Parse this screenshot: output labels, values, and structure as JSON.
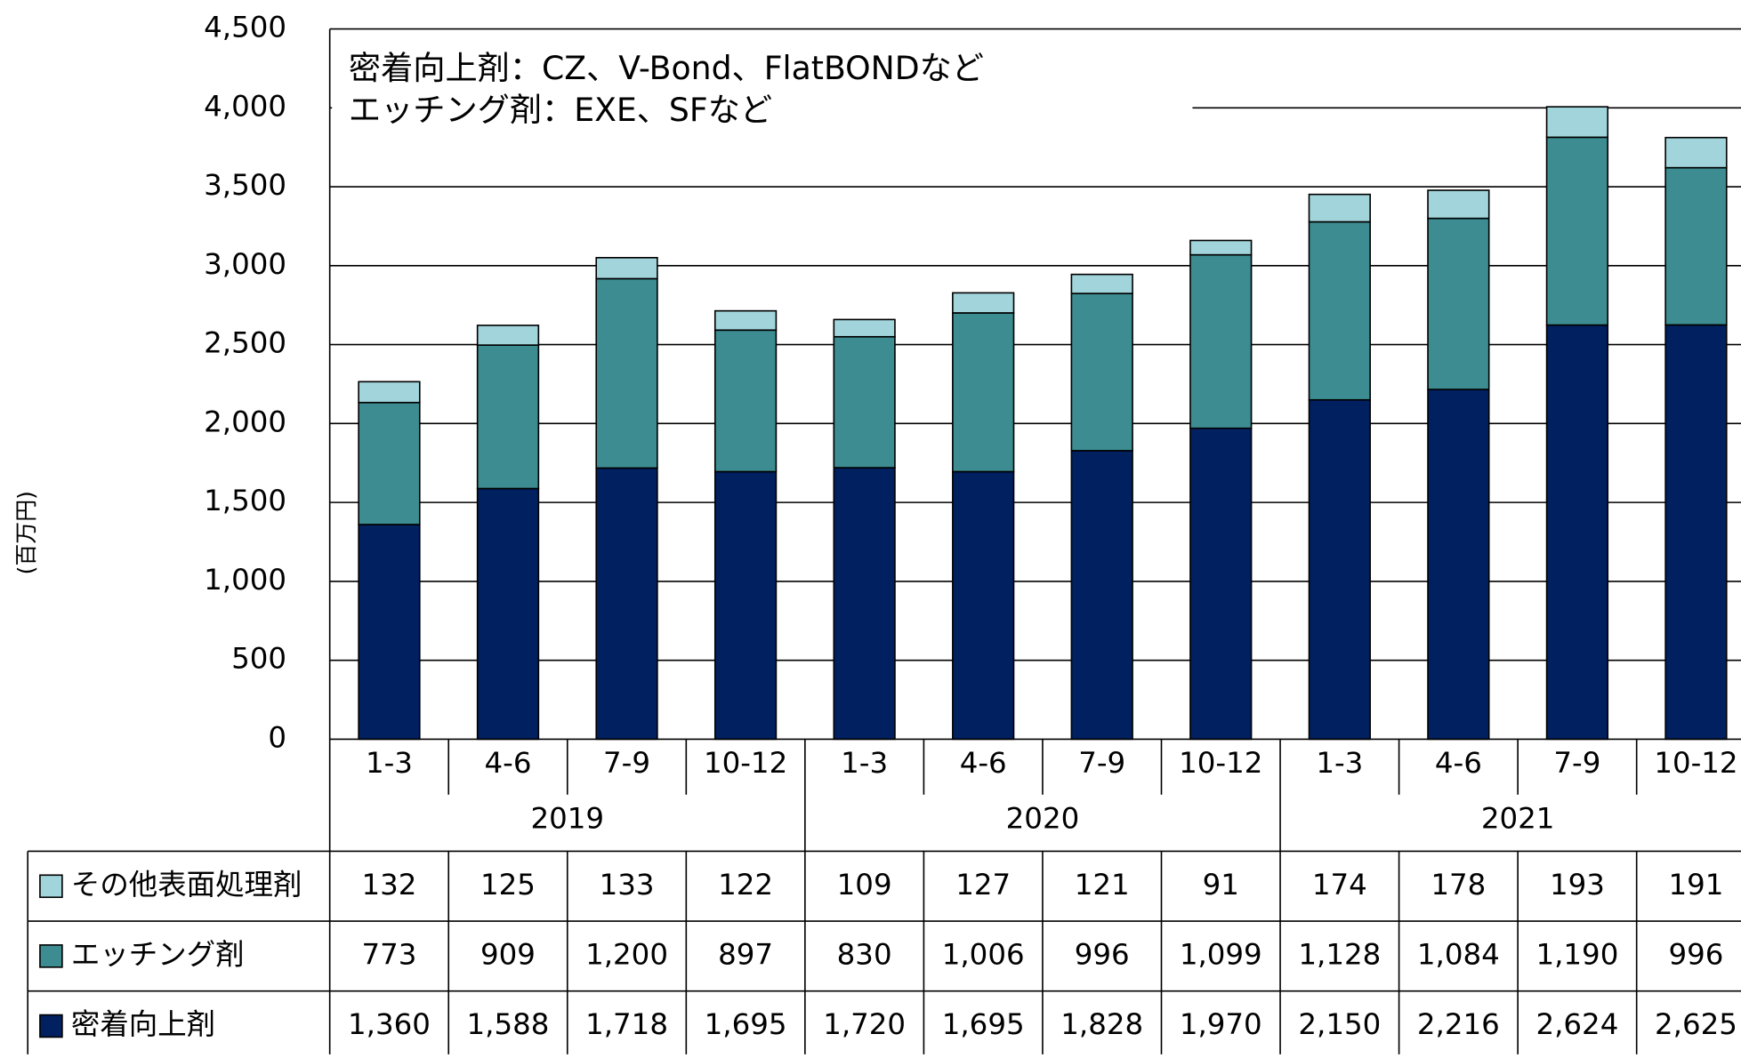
{
  "chart_data": {
    "type": "bar",
    "stacked": true,
    "y_label": "(百万円)",
    "annotations": [
      "密着向上剤：CZ、V-Bond、FlatBONDなど",
      "エッチング剤：EXE、SFなど"
    ],
    "categories": [
      "1-3",
      "4-6",
      "7-9",
      "10-12",
      "1-3",
      "4-6",
      "7-9",
      "10-12",
      "1-3",
      "4-6",
      "7-9",
      "10-12"
    ],
    "years": [
      "2019",
      "2020",
      "2021"
    ],
    "ylim": [
      0,
      4500
    ],
    "yticks": [
      0,
      500,
      {
        "value": 1000,
        "label": "1,000"
      },
      {
        "value": 1500,
        "label": "1,500"
      },
      {
        "value": 2000,
        "label": "2,000"
      },
      {
        "value": 2500,
        "label": "2,500"
      },
      {
        "value": 3000,
        "label": "3,000"
      },
      {
        "value": 3500,
        "label": "3,500"
      },
      {
        "value": 4000,
        "label": "4,000"
      },
      {
        "value": 4500,
        "label": "4,500"
      }
    ],
    "grid": true,
    "series": [
      {
        "name": "密着向上剤",
        "color": "#002060",
        "values": [
          1360,
          1588,
          1718,
          1695,
          1720,
          1695,
          1828,
          1970,
          2150,
          2216,
          2624,
          2625
        ],
        "value_labels": [
          "1,360",
          "1,588",
          "1,718",
          "1,695",
          "1,720",
          "1,695",
          "1,828",
          "1,970",
          "2,150",
          "2,216",
          "2,624",
          "2,625"
        ]
      },
      {
        "name": "エッチング剤",
        "color": "#3c8c91",
        "values": [
          773,
          909,
          1200,
          897,
          830,
          1006,
          996,
          1099,
          1128,
          1084,
          1190,
          996
        ],
        "value_labels": [
          "773",
          "909",
          "1,200",
          "897",
          "830",
          "1,006",
          "996",
          "1,099",
          "1,128",
          "1,084",
          "1,190",
          "996"
        ]
      },
      {
        "name": "その他表面処理剤",
        "color": "#a1d5db",
        "values": [
          132,
          125,
          133,
          122,
          109,
          127,
          121,
          91,
          174,
          178,
          193,
          191
        ],
        "value_labels": [
          "132",
          "125",
          "133",
          "122",
          "109",
          "127",
          "121",
          "91",
          "174",
          "178",
          "193",
          "191"
        ]
      }
    ]
  }
}
